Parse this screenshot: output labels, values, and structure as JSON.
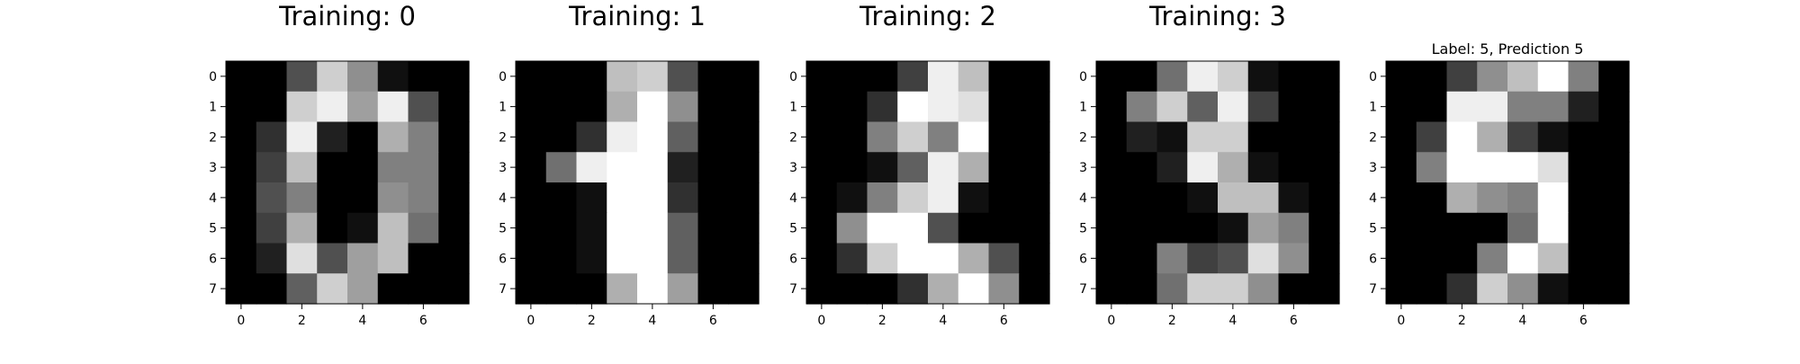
{
  "chart_data": [
    {
      "type": "heatmap",
      "title": "Training: 0",
      "colormap": "gray_r",
      "vmin": 0,
      "vmax": 16,
      "x_ticks": [
        "0",
        "2",
        "4",
        "6"
      ],
      "y_ticks": [
        "0",
        "1",
        "2",
        "3",
        "4",
        "5",
        "6",
        "7"
      ],
      "values": [
        [
          0,
          0,
          5,
          13,
          9,
          1,
          0,
          0
        ],
        [
          0,
          0,
          13,
          15,
          10,
          15,
          5,
          0
        ],
        [
          0,
          3,
          15,
          2,
          0,
          11,
          8,
          0
        ],
        [
          0,
          4,
          12,
          0,
          0,
          8,
          8,
          0
        ],
        [
          0,
          5,
          8,
          0,
          0,
          9,
          8,
          0
        ],
        [
          0,
          4,
          11,
          0,
          1,
          12,
          7,
          0
        ],
        [
          0,
          2,
          14,
          5,
          10,
          12,
          0,
          0
        ],
        [
          0,
          0,
          6,
          13,
          10,
          0,
          0,
          0
        ]
      ]
    },
    {
      "type": "heatmap",
      "title": "Training: 1",
      "colormap": "gray_r",
      "vmin": 0,
      "vmax": 16,
      "x_ticks": [
        "0",
        "2",
        "4",
        "6"
      ],
      "y_ticks": [
        "0",
        "1",
        "2",
        "3",
        "4",
        "5",
        "6",
        "7"
      ],
      "values": [
        [
          0,
          0,
          0,
          12,
          13,
          5,
          0,
          0
        ],
        [
          0,
          0,
          0,
          11,
          16,
          9,
          0,
          0
        ],
        [
          0,
          0,
          3,
          15,
          16,
          6,
          0,
          0
        ],
        [
          0,
          7,
          15,
          16,
          16,
          2,
          0,
          0
        ],
        [
          0,
          0,
          1,
          16,
          16,
          3,
          0,
          0
        ],
        [
          0,
          0,
          1,
          16,
          16,
          6,
          0,
          0
        ],
        [
          0,
          0,
          1,
          16,
          16,
          6,
          0,
          0
        ],
        [
          0,
          0,
          0,
          11,
          16,
          10,
          0,
          0
        ]
      ]
    },
    {
      "type": "heatmap",
      "title": "Training: 2",
      "colormap": "gray_r",
      "vmin": 0,
      "vmax": 16,
      "x_ticks": [
        "0",
        "2",
        "4",
        "6"
      ],
      "y_ticks": [
        "0",
        "1",
        "2",
        "3",
        "4",
        "5",
        "6",
        "7"
      ],
      "values": [
        [
          0,
          0,
          0,
          4,
          15,
          12,
          0,
          0
        ],
        [
          0,
          0,
          3,
          16,
          15,
          14,
          0,
          0
        ],
        [
          0,
          0,
          8,
          13,
          8,
          16,
          0,
          0
        ],
        [
          0,
          0,
          1,
          6,
          15,
          11,
          0,
          0
        ],
        [
          0,
          1,
          8,
          13,
          15,
          1,
          0,
          0
        ],
        [
          0,
          9,
          16,
          16,
          5,
          0,
          0,
          0
        ],
        [
          0,
          3,
          13,
          16,
          16,
          11,
          5,
          0
        ],
        [
          0,
          0,
          0,
          3,
          11,
          16,
          9,
          0
        ]
      ]
    },
    {
      "type": "heatmap",
      "title": "Training: 3",
      "colormap": "gray_r",
      "vmin": 0,
      "vmax": 16,
      "x_ticks": [
        "0",
        "2",
        "4",
        "6"
      ],
      "y_ticks": [
        "0",
        "1",
        "2",
        "3",
        "4",
        "5",
        "6",
        "7"
      ],
      "values": [
        [
          0,
          0,
          7,
          15,
          13,
          1,
          0,
          0
        ],
        [
          0,
          8,
          13,
          6,
          15,
          4,
          0,
          0
        ],
        [
          0,
          2,
          1,
          13,
          13,
          0,
          0,
          0
        ],
        [
          0,
          0,
          2,
          15,
          11,
          1,
          0,
          0
        ],
        [
          0,
          0,
          0,
          1,
          12,
          12,
          1,
          0
        ],
        [
          0,
          0,
          0,
          0,
          1,
          10,
          8,
          0
        ],
        [
          0,
          0,
          8,
          4,
          5,
          14,
          9,
          0
        ],
        [
          0,
          0,
          7,
          13,
          13,
          9,
          0,
          0
        ]
      ]
    },
    {
      "type": "heatmap",
      "title": "Label: 5, Prediction 5",
      "colormap": "gray_r",
      "vmin": 0,
      "vmax": 16,
      "x_ticks": [
        "0",
        "2",
        "4",
        "6"
      ],
      "y_ticks": [
        "0",
        "1",
        "2",
        "3",
        "4",
        "5",
        "6",
        "7"
      ],
      "values": [
        [
          0,
          0,
          4,
          9,
          12,
          16,
          8,
          0
        ],
        [
          0,
          0,
          15,
          15,
          8,
          8,
          2,
          0
        ],
        [
          0,
          4,
          16,
          11,
          4,
          1,
          0,
          0
        ],
        [
          0,
          8,
          16,
          16,
          16,
          14,
          0,
          0
        ],
        [
          0,
          0,
          11,
          9,
          8,
          16,
          0,
          0
        ],
        [
          0,
          0,
          0,
          0,
          7,
          16,
          0,
          0
        ],
        [
          0,
          0,
          0,
          8,
          16,
          12,
          0,
          0
        ],
        [
          0,
          0,
          3,
          13,
          9,
          1,
          0,
          0
        ]
      ]
    }
  ]
}
